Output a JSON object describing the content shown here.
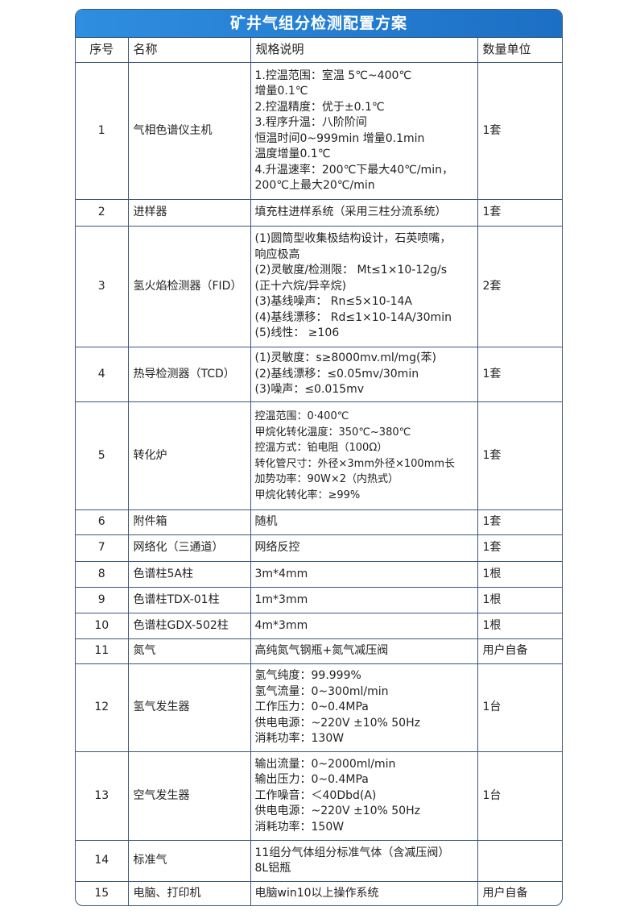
{
  "title": "矿井气组分检测配置方案",
  "columns": [
    "序号",
    "名称",
    "规格说明",
    "数量单位"
  ],
  "rows": [
    {
      "no": "1",
      "name": "气相色谱仪主机",
      "spec": "1.控温范围：室温 5℃~400℃\n增量0.1℃\n2.控温精度：优于±0.1℃\n3.程序升温：八阶阶间\n恒温时间0~999min 增量0.1min\n温度增量0.1℃\n4.升温速率：200℃下最大40℃/min，\n200℃上最大20℃/min",
      "qty": "1套"
    },
    {
      "no": "2",
      "name": "进样器",
      "spec": "填充柱进样系统（采用三柱分流系统）",
      "qty": "1套"
    },
    {
      "no": "3",
      "name": "氢火焰检测器（FID）",
      "spec": "(1)圆筒型收集极结构设计，石英喷嘴，\n响应极高\n(2)灵敏度/检测限： Mt≤1×10-12g/s\n(正十六烷/异辛烷)\n(3)基线噪声： Rn≤5×10-14A\n(4)基线漂移： Rd≤1×10-14A/30min\n(5)线性： ≥106",
      "qty": "2套"
    },
    {
      "no": "4",
      "name": "热导检测器（TCD）",
      "spec": "(1)灵敏度：s≥8000mv.ml/mg(苯)\n(2)基线漂移：≤0.05mv/30min\n(3)噪声：≤0.015mv",
      "qty": "1套"
    },
    {
      "no": "5",
      "name": "转化炉",
      "spec": "控温范围：0·400℃\n甲烷化转化温度：350℃~380℃\n控温方式：铂电阻（100Ω）\n转化管尺寸：外径×3mm外径×100mm长\n 加势功率：90W×2（内热式）\n甲烷化转化率：≥99%",
      "qty": "1套"
    },
    {
      "no": "6",
      "name": "附件箱",
      "spec": "随机",
      "qty": "1套"
    },
    {
      "no": "7",
      "name": "网络化（三通道）",
      "spec": "网络反控",
      "qty": "1套"
    },
    {
      "no": "8",
      "name": "色谱柱5A柱",
      "spec": "3m*4mm",
      "qty": "1根"
    },
    {
      "no": "9",
      "name": "色谱柱TDX-01柱",
      "spec": "1m*3mm",
      "qty": "1根"
    },
    {
      "no": "10",
      "name": "色谱柱GDX-502柱",
      "spec": "4m*3mm",
      "qty": "1根"
    },
    {
      "no": "11",
      "name": "氮气",
      "spec": "高纯氮气钢瓶+氮气减压阀",
      "qty": "用户自备"
    },
    {
      "no": "12",
      "name": "氢气发生器",
      "spec": "氢气纯度：99.999%\n氢气流量：0~300ml/min\n工作压力：0~0.4MPa\n供电电源：~220V ±10% 50Hz\n消耗功率：130W",
      "qty": "1台"
    },
    {
      "no": "13",
      "name": "空气发生器",
      "spec": "输出流量：0~2000ml/min\n输出压力：0~0.4MPa\n工作噪音：＜40Dbd(A)\n供电电源：~220V ±10% 50Hz\n消耗功率：150W",
      "qty": "1台"
    },
    {
      "no": "14",
      "name": "标准气",
      "spec": "11组分气体组分标准气体（含减压阀）\n8L铝瓶",
      "qty": ""
    },
    {
      "no": "15",
      "name": "电脑、打印机",
      "spec": "电脑win10以上操作系统",
      "qty": "用户自备"
    }
  ]
}
